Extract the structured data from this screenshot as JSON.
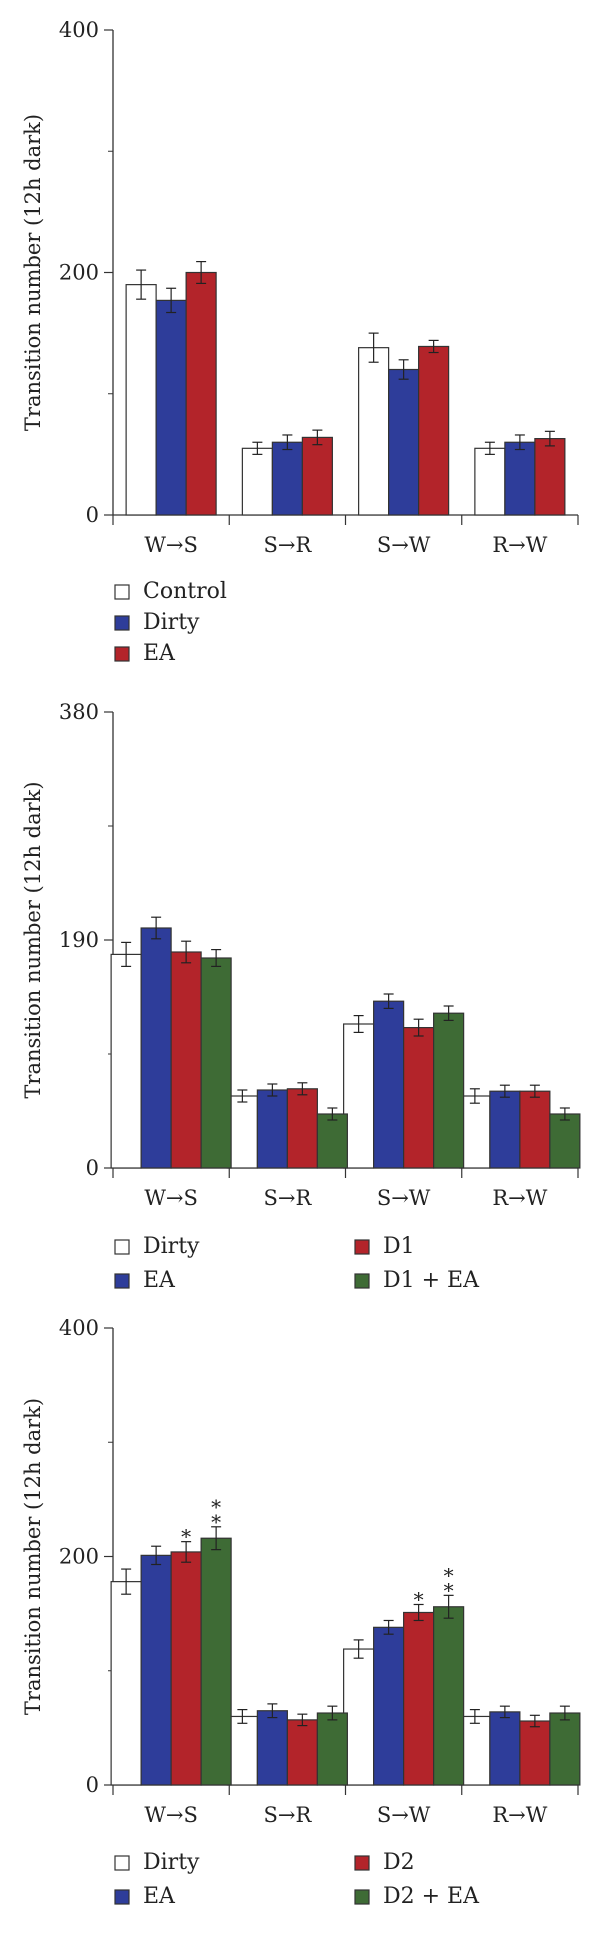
{
  "colors": {
    "Control": "#ffffff",
    "Dirty_white": "#ffffff",
    "Dirty_blue": "#2e3d9a",
    "EA_blue": "#2e3d9a",
    "EA_red": "#b3242a",
    "D1": "#b3242a",
    "D1 + EA": "#3e6b35",
    "D2": "#b3242a",
    "D2 + EA": "#3e6b35"
  },
  "chart_data": [
    {
      "type": "bar",
      "title": "",
      "xlabel": "",
      "ylabel": "Transition number (12h dark)",
      "ylim": [
        0,
        400
      ],
      "yticks": [
        "0",
        "200",
        "400"
      ],
      "categories": [
        "W→S",
        "S→R",
        "S→W",
        "R→W"
      ],
      "legend_columns": 1,
      "series": [
        {
          "name": "Control",
          "color": "#ffffff",
          "values": [
            190,
            55,
            138,
            55
          ],
          "errors": [
            12,
            5,
            12,
            5
          ]
        },
        {
          "name": "Dirty",
          "color": "#2e3d9a",
          "values": [
            177,
            60,
            120,
            60
          ],
          "errors": [
            10,
            6,
            8,
            6
          ]
        },
        {
          "name": "EA",
          "color": "#b3242a",
          "values": [
            200,
            64,
            139,
            63
          ],
          "errors": [
            9,
            6,
            5,
            6
          ]
        }
      ],
      "significance": []
    },
    {
      "type": "bar",
      "title": "",
      "xlabel": "",
      "ylabel": "Transition number (12h dark)",
      "ylim": [
        0,
        380
      ],
      "yticks": [
        "0",
        "190",
        "380"
      ],
      "categories": [
        "W→S",
        "S→R",
        "S→W",
        "R→W"
      ],
      "legend_columns": 2,
      "series": [
        {
          "name": "Dirty",
          "color": "#ffffff",
          "values": [
            178,
            60,
            120,
            60
          ],
          "errors": [
            10,
            5,
            7,
            6
          ]
        },
        {
          "name": "EA",
          "color": "#2e3d9a",
          "values": [
            200,
            65,
            139,
            64
          ],
          "errors": [
            9,
            5,
            6,
            5
          ]
        },
        {
          "name": "D1",
          "color": "#b3242a",
          "values": [
            180,
            66,
            117,
            64
          ],
          "errors": [
            9,
            5,
            7,
            5
          ]
        },
        {
          "name": "D1 + EA",
          "color": "#3e6b35",
          "values": [
            175,
            45,
            129,
            45
          ],
          "errors": [
            7,
            5,
            6,
            5
          ]
        }
      ],
      "significance": []
    },
    {
      "type": "bar",
      "title": "",
      "xlabel": "",
      "ylabel": "Transition number (12h dark)",
      "ylim": [
        0,
        400
      ],
      "yticks": [
        "0",
        "200",
        "400"
      ],
      "categories": [
        "W→S",
        "S→R",
        "S→W",
        "R→W"
      ],
      "legend_columns": 2,
      "series": [
        {
          "name": "Dirty",
          "color": "#ffffff",
          "values": [
            178,
            60,
            119,
            60
          ],
          "errors": [
            11,
            6,
            8,
            6
          ]
        },
        {
          "name": "EA",
          "color": "#2e3d9a",
          "values": [
            201,
            65,
            138,
            64
          ],
          "errors": [
            8,
            6,
            6,
            5
          ]
        },
        {
          "name": "D2",
          "color": "#b3242a",
          "values": [
            204,
            57,
            151,
            56
          ],
          "errors": [
            9,
            5,
            7,
            5
          ]
        },
        {
          "name": "D2 + EA",
          "color": "#3e6b35",
          "values": [
            216,
            63,
            156,
            63
          ],
          "errors": [
            10,
            6,
            10,
            6
          ]
        }
      ],
      "significance": [
        {
          "category": 0,
          "series": 2,
          "label": "*"
        },
        {
          "category": 0,
          "series": 3,
          "label": "**"
        },
        {
          "category": 2,
          "series": 2,
          "label": "*"
        },
        {
          "category": 2,
          "series": 3,
          "label": "**"
        }
      ]
    }
  ]
}
